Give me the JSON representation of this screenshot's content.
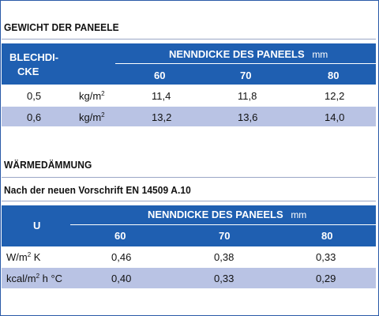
{
  "section1": {
    "title": "GEWICHT DER PANEELE",
    "col_header_left_line1": "BLECHDI-",
    "col_header_left_line2": "CKE",
    "group_header": "NENNDICKE DES PANEELS",
    "group_unit": "mm",
    "columns": [
      "60",
      "70",
      "80"
    ],
    "rows": [
      {
        "thickness": "0,5",
        "unit": "kg/m",
        "unit_sup": "2",
        "values": [
          "11,4",
          "11,8",
          "12,2"
        ]
      },
      {
        "thickness": "0,6",
        "unit": "kg/m",
        "unit_sup": "2",
        "values": [
          "13,2",
          "13,6",
          "14,0"
        ]
      }
    ]
  },
  "section2": {
    "title": "WÄRMEDÄMMUNG",
    "subtitle": "Nach der neuen Vorschrift EN 14509 A.10",
    "col_header_left": "U",
    "group_header": "NENNDICKE DES PANEELS",
    "group_unit": "mm",
    "columns": [
      "60",
      "70",
      "80"
    ],
    "rows": [
      {
        "unit_pre": "W/m",
        "unit_sup": "2",
        "unit_post": " K",
        "values": [
          "0,46",
          "0,38",
          "0,33"
        ]
      },
      {
        "unit_pre": "kcal/m",
        "unit_sup": "2",
        "unit_post": " h °C",
        "values": [
          "0,40",
          "0,33",
          "0,29"
        ]
      }
    ]
  },
  "colors": {
    "header_blue": "#1f5fb1",
    "row_shade": "#b9c3e4",
    "frame_border": "#2a5aa8"
  }
}
